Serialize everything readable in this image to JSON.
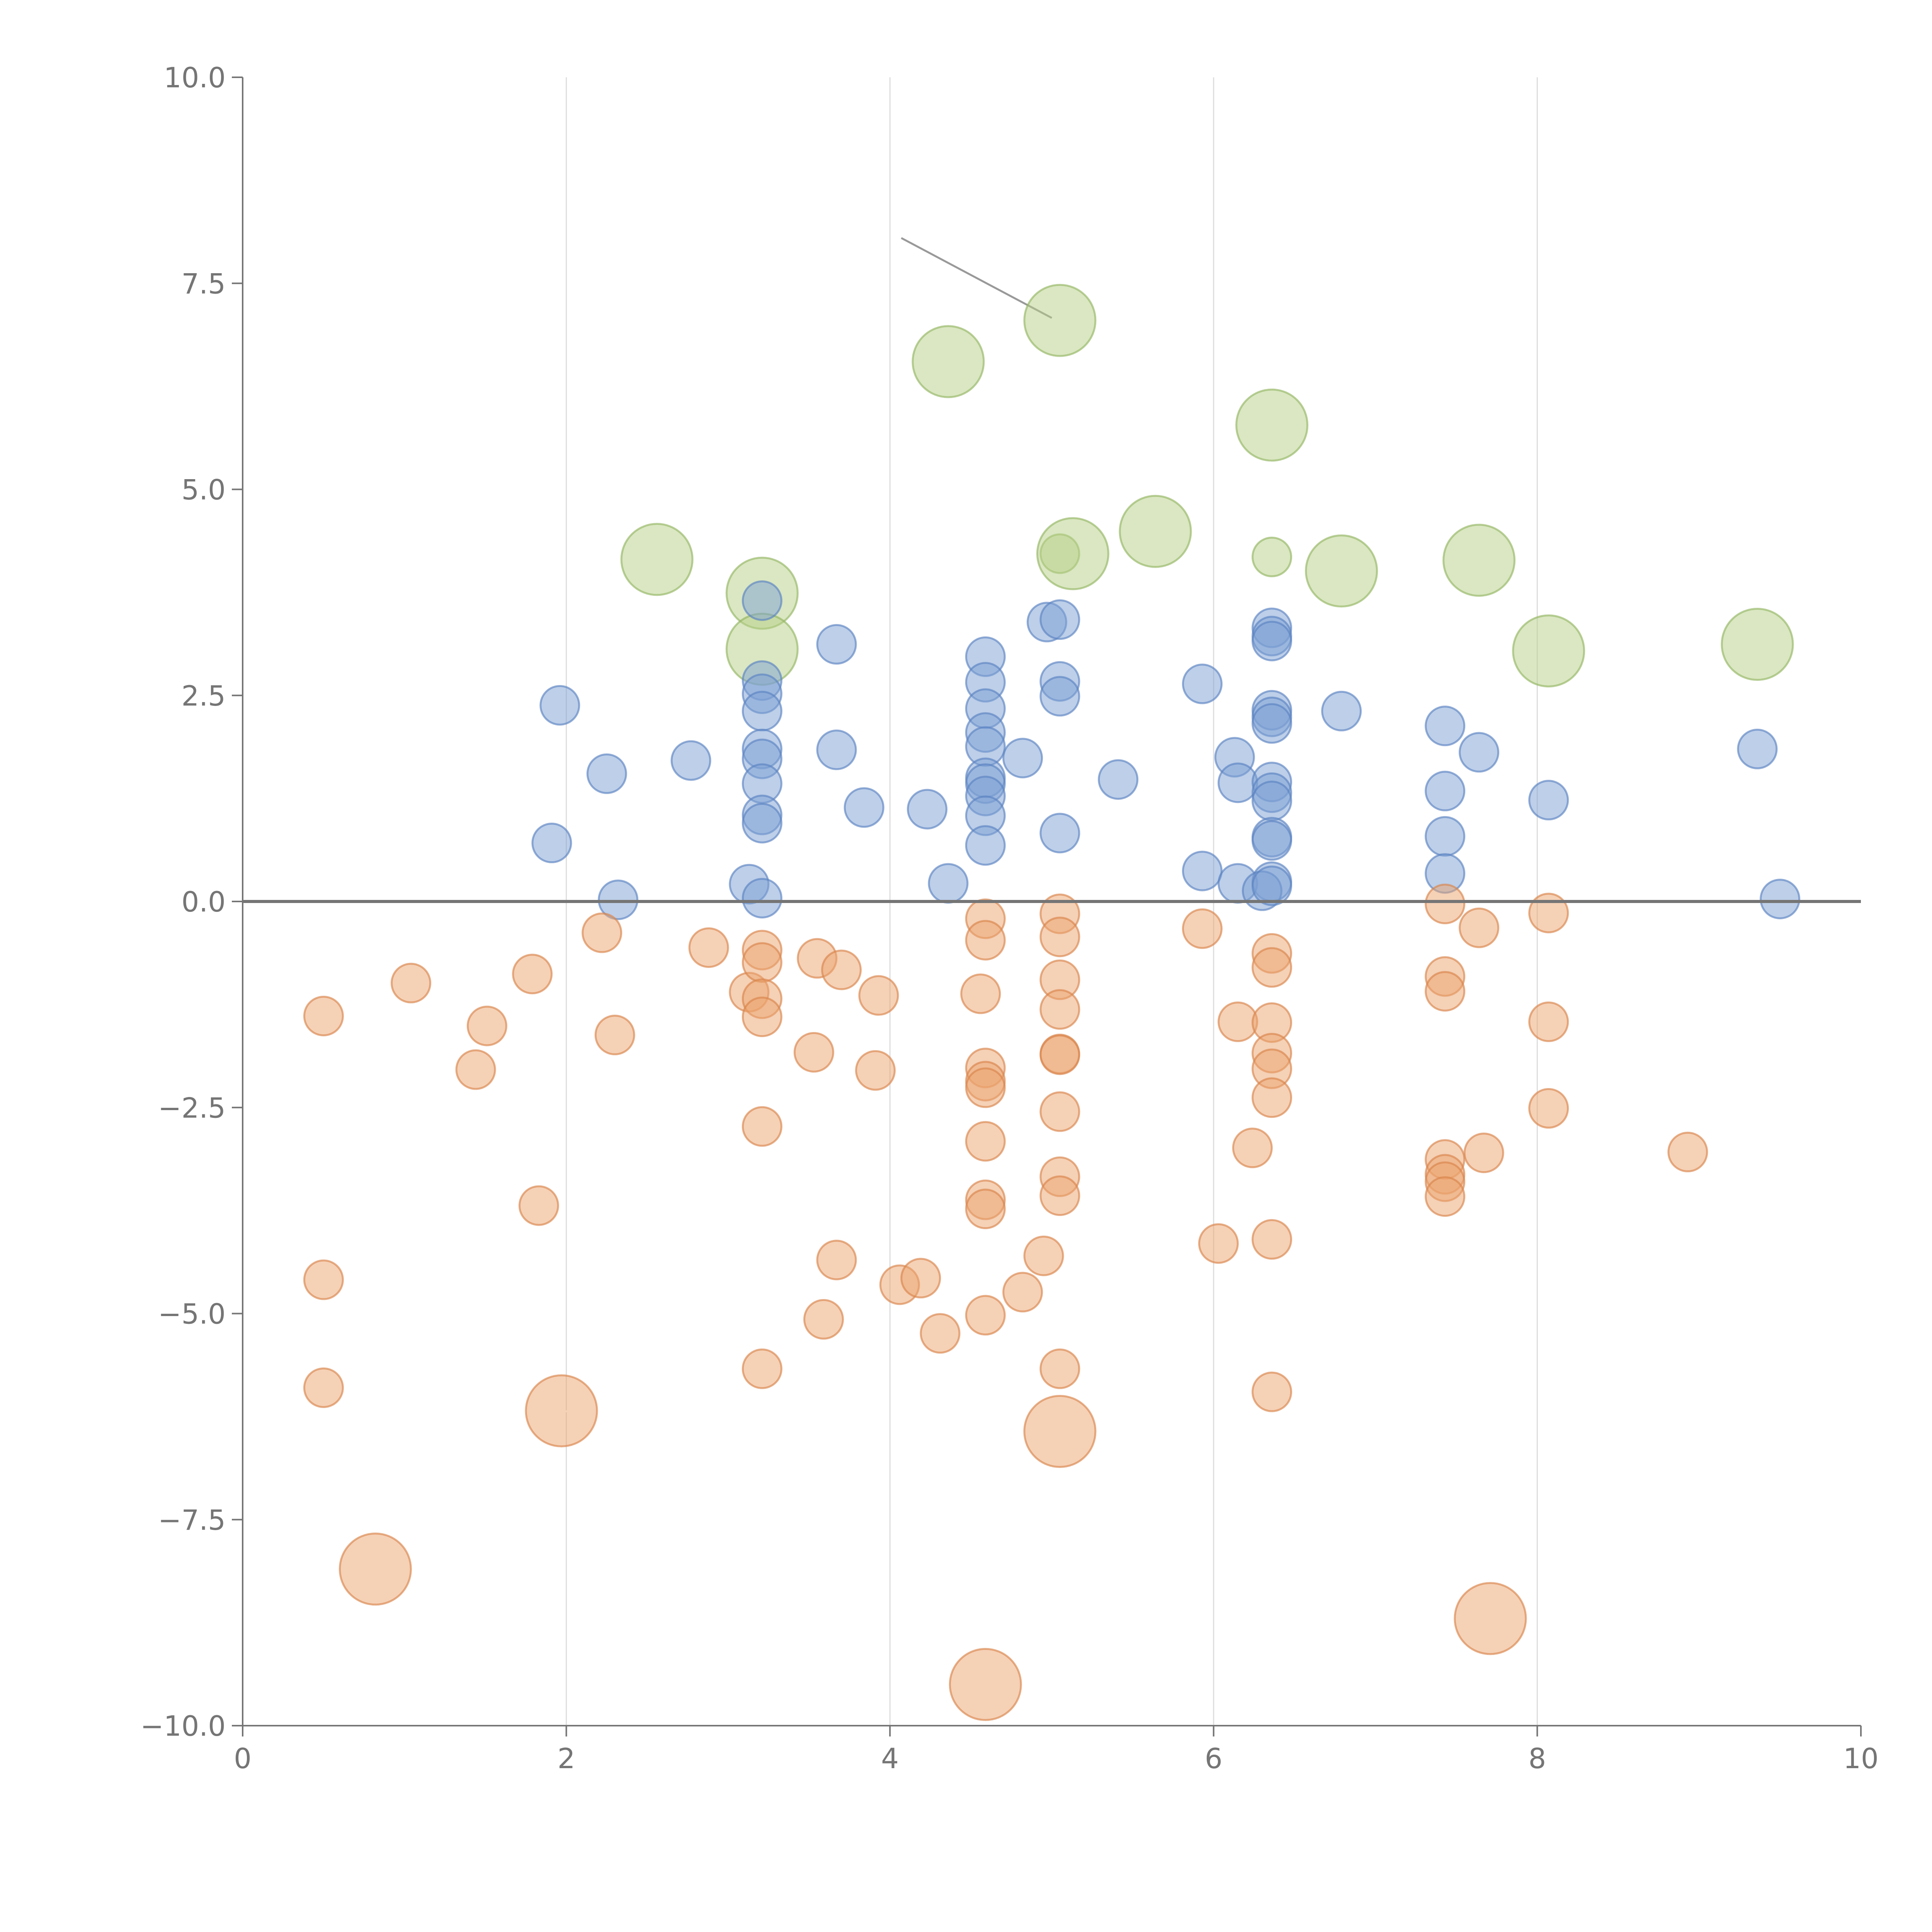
{
  "chart_data": {
    "type": "scatter",
    "subtype": "bubble",
    "title": "",
    "xlabel": "",
    "ylabel": "",
    "xlim": [
      0,
      10
    ],
    "ylim": [
      -10,
      10
    ],
    "x_ticks": [
      "0",
      "2",
      "4",
      "6",
      "8",
      "10"
    ],
    "y_ticks": [
      "−10.0",
      "−7.5",
      "−5.0",
      "−2.5",
      "0.0",
      "2.5",
      "5.0",
      "7.5",
      "10.0"
    ],
    "x_tick_values": [
      0,
      2,
      4,
      6,
      8,
      10
    ],
    "y_tick_values": [
      -10,
      -7.5,
      -5,
      -2.5,
      0,
      2.5,
      5,
      7.5,
      10
    ],
    "grid": "vertical lines at x ticks",
    "reference_line_y": 0,
    "legend": "none",
    "colors": {
      "green": "#b5cf85",
      "green_edge": "#93b562",
      "blue": "#7c9fd3",
      "blue_edge": "#5b83c2",
      "orange": "#eca46e",
      "orange_edge": "#d9844b",
      "axis": "#757575",
      "grid": "#dddddd"
    },
    "series": [
      {
        "color_key": "green",
        "points": [
          {
            "x": 5.05,
            "y": 7.05,
            "size": 3
          },
          {
            "x": 4.36,
            "y": 6.55,
            "size": 3
          },
          {
            "x": 6.36,
            "y": 5.78,
            "size": 3
          },
          {
            "x": 2.56,
            "y": 4.15,
            "size": 3
          },
          {
            "x": 3.21,
            "y": 3.74,
            "size": 3
          },
          {
            "x": 3.21,
            "y": 3.06,
            "size": 3
          },
          {
            "x": 5.05,
            "y": 4.22,
            "size": 1
          },
          {
            "x": 5.13,
            "y": 4.22,
            "size": 3
          },
          {
            "x": 5.64,
            "y": 4.49,
            "size": 3
          },
          {
            "x": 6.36,
            "y": 4.18,
            "size": 1
          },
          {
            "x": 6.79,
            "y": 4.01,
            "size": 3
          },
          {
            "x": 7.64,
            "y": 4.14,
            "size": 3
          },
          {
            "x": 8.07,
            "y": 3.04,
            "size": 3
          },
          {
            "x": 9.36,
            "y": 3.12,
            "size": 3
          }
        ]
      },
      {
        "color_key": "blue",
        "points": [
          {
            "x": 1.96,
            "y": 2.38
          },
          {
            "x": 1.91,
            "y": 0.71
          },
          {
            "x": 2.25,
            "y": 1.55
          },
          {
            "x": 2.32,
            "y": 0.02
          },
          {
            "x": 2.77,
            "y": 1.71
          },
          {
            "x": 3.21,
            "y": 3.65
          },
          {
            "x": 3.21,
            "y": 2.68
          },
          {
            "x": 3.21,
            "y": 2.52
          },
          {
            "x": 3.21,
            "y": 2.31
          },
          {
            "x": 3.21,
            "y": 1.85
          },
          {
            "x": 3.21,
            "y": 1.73
          },
          {
            "x": 3.21,
            "y": 1.43
          },
          {
            "x": 3.21,
            "y": 1.05
          },
          {
            "x": 3.21,
            "y": 0.95
          },
          {
            "x": 3.13,
            "y": 0.21
          },
          {
            "x": 3.21,
            "y": 0.04
          },
          {
            "x": 3.67,
            "y": 3.12
          },
          {
            "x": 3.67,
            "y": 1.84
          },
          {
            "x": 3.84,
            "y": 1.14
          },
          {
            "x": 4.23,
            "y": 1.12
          },
          {
            "x": 4.36,
            "y": 0.22
          },
          {
            "x": 4.59,
            "y": 2.97
          },
          {
            "x": 4.59,
            "y": 2.66
          },
          {
            "x": 4.59,
            "y": 2.34
          },
          {
            "x": 4.59,
            "y": 2.05
          },
          {
            "x": 4.59,
            "y": 1.88
          },
          {
            "x": 4.59,
            "y": 1.5
          },
          {
            "x": 4.59,
            "y": 1.43
          },
          {
            "x": 4.59,
            "y": 1.28
          },
          {
            "x": 4.59,
            "y": 1.04
          },
          {
            "x": 4.59,
            "y": 0.68
          },
          {
            "x": 4.82,
            "y": 1.74
          },
          {
            "x": 4.97,
            "y": 3.39
          },
          {
            "x": 5.05,
            "y": 3.42
          },
          {
            "x": 5.05,
            "y": 2.67
          },
          {
            "x": 5.05,
            "y": 2.49
          },
          {
            "x": 5.05,
            "y": 0.83
          },
          {
            "x": 5.41,
            "y": 1.48
          },
          {
            "x": 5.93,
            "y": 2.64
          },
          {
            "x": 5.93,
            "y": 0.37
          },
          {
            "x": 6.13,
            "y": 1.75
          },
          {
            "x": 6.15,
            "y": 1.44
          },
          {
            "x": 6.15,
            "y": 0.22
          },
          {
            "x": 6.36,
            "y": 3.32
          },
          {
            "x": 6.36,
            "y": 3.22
          },
          {
            "x": 6.36,
            "y": 3.16
          },
          {
            "x": 6.36,
            "y": 2.32
          },
          {
            "x": 6.36,
            "y": 2.24
          },
          {
            "x": 6.36,
            "y": 2.16
          },
          {
            "x": 6.36,
            "y": 1.45
          },
          {
            "x": 6.36,
            "y": 1.32
          },
          {
            "x": 6.36,
            "y": 1.22
          },
          {
            "x": 6.36,
            "y": 0.78
          },
          {
            "x": 6.36,
            "y": 0.74
          },
          {
            "x": 6.36,
            "y": 0.24
          },
          {
            "x": 6.3,
            "y": 0.13
          },
          {
            "x": 6.36,
            "y": 0.19
          },
          {
            "x": 6.79,
            "y": 2.31
          },
          {
            "x": 7.43,
            "y": 2.13
          },
          {
            "x": 7.43,
            "y": 1.34
          },
          {
            "x": 7.43,
            "y": 0.79
          },
          {
            "x": 7.43,
            "y": 0.34
          },
          {
            "x": 7.64,
            "y": 1.81
          },
          {
            "x": 8.07,
            "y": 1.23
          },
          {
            "x": 9.36,
            "y": 1.85
          },
          {
            "x": 9.5,
            "y": 0.03
          }
        ]
      },
      {
        "color_key": "orange",
        "points": [
          {
            "x": 0.5,
            "y": -1.39
          },
          {
            "x": 0.5,
            "y": -4.59
          },
          {
            "x": 0.5,
            "y": -5.9
          },
          {
            "x": 0.82,
            "y": -8.1,
            "size": 3
          },
          {
            "x": 1.04,
            "y": -0.99
          },
          {
            "x": 1.44,
            "y": -2.04
          },
          {
            "x": 1.51,
            "y": -1.51
          },
          {
            "x": 1.79,
            "y": -0.88
          },
          {
            "x": 1.83,
            "y": -3.69
          },
          {
            "x": 1.97,
            "y": -6.18,
            "size": 3
          },
          {
            "x": 2.22,
            "y": -0.38
          },
          {
            "x": 2.3,
            "y": -1.62
          },
          {
            "x": 2.88,
            "y": -0.56
          },
          {
            "x": 3.13,
            "y": -1.1
          },
          {
            "x": 3.21,
            "y": -0.59
          },
          {
            "x": 3.21,
            "y": -0.74
          },
          {
            "x": 3.21,
            "y": -1.18
          },
          {
            "x": 3.21,
            "y": -1.4
          },
          {
            "x": 3.21,
            "y": -2.73
          },
          {
            "x": 3.21,
            "y": -5.67
          },
          {
            "x": 3.53,
            "y": -1.83
          },
          {
            "x": 3.55,
            "y": -0.69
          },
          {
            "x": 3.59,
            "y": -5.07
          },
          {
            "x": 3.67,
            "y": -4.35
          },
          {
            "x": 3.7,
            "y": -0.83
          },
          {
            "x": 3.91,
            "y": -2.05
          },
          {
            "x": 3.93,
            "y": -1.14
          },
          {
            "x": 4.06,
            "y": -4.65
          },
          {
            "x": 4.19,
            "y": -4.57
          },
          {
            "x": 4.31,
            "y": -5.24
          },
          {
            "x": 4.56,
            "y": -1.12
          },
          {
            "x": 4.59,
            "y": -0.21
          },
          {
            "x": 4.59,
            "y": -0.47
          },
          {
            "x": 4.59,
            "y": -2.02
          },
          {
            "x": 4.59,
            "y": -2.18
          },
          {
            "x": 4.59,
            "y": -2.26
          },
          {
            "x": 4.59,
            "y": -2.91
          },
          {
            "x": 4.59,
            "y": -3.62
          },
          {
            "x": 4.59,
            "y": -3.73
          },
          {
            "x": 4.59,
            "y": -5.02
          },
          {
            "x": 4.59,
            "y": -9.5,
            "size": 3
          },
          {
            "x": 4.82,
            "y": -4.74
          },
          {
            "x": 4.95,
            "y": -4.3
          },
          {
            "x": 5.05,
            "y": -0.15
          },
          {
            "x": 5.05,
            "y": -0.43
          },
          {
            "x": 5.05,
            "y": -0.95
          },
          {
            "x": 5.05,
            "y": -1.31
          },
          {
            "x": 5.05,
            "y": -1.85
          },
          {
            "x": 5.05,
            "y": -1.86
          },
          {
            "x": 5.05,
            "y": -2.55
          },
          {
            "x": 5.05,
            "y": -3.34
          },
          {
            "x": 5.05,
            "y": -3.57
          },
          {
            "x": 5.05,
            "y": -5.67
          },
          {
            "x": 5.05,
            "y": -6.43,
            "size": 3
          },
          {
            "x": 5.93,
            "y": -0.33
          },
          {
            "x": 6.03,
            "y": -4.15
          },
          {
            "x": 6.15,
            "y": -1.46
          },
          {
            "x": 6.24,
            "y": -2.99
          },
          {
            "x": 6.36,
            "y": -0.63
          },
          {
            "x": 6.36,
            "y": -0.8
          },
          {
            "x": 6.36,
            "y": -1.47
          },
          {
            "x": 6.36,
            "y": -1.84
          },
          {
            "x": 6.36,
            "y": -2.03
          },
          {
            "x": 6.36,
            "y": -2.38
          },
          {
            "x": 6.36,
            "y": -4.1
          },
          {
            "x": 6.36,
            "y": -5.95
          },
          {
            "x": 7.43,
            "y": -0.03
          },
          {
            "x": 7.43,
            "y": -0.91
          },
          {
            "x": 7.43,
            "y": -1.09
          },
          {
            "x": 7.43,
            "y": -3.13
          },
          {
            "x": 7.43,
            "y": -3.31
          },
          {
            "x": 7.43,
            "y": -3.4
          },
          {
            "x": 7.43,
            "y": -3.58
          },
          {
            "x": 7.64,
            "y": -0.32
          },
          {
            "x": 7.67,
            "y": -3.05
          },
          {
            "x": 7.71,
            "y": -8.7,
            "size": 3
          },
          {
            "x": 8.07,
            "y": -0.14
          },
          {
            "x": 8.07,
            "y": -1.46
          },
          {
            "x": 8.07,
            "y": -2.51
          },
          {
            "x": 8.93,
            "y": -3.04
          }
        ]
      }
    ]
  }
}
